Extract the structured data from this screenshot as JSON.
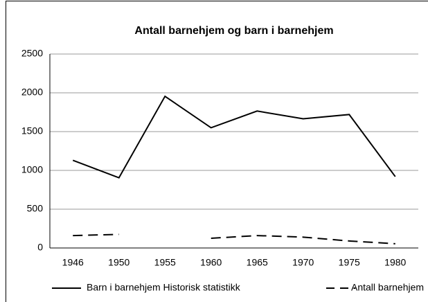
{
  "chart_data": {
    "type": "line",
    "title": "Antall barnehjem og barn i barnehjem",
    "categories": [
      "1946",
      "1950",
      "1955",
      "1960",
      "1965",
      "1970",
      "1975",
      "1980"
    ],
    "series": [
      {
        "name": "Barn i barnehjem Historisk statistikk",
        "color": "#000000",
        "style": "solid",
        "values": [
          1130,
          905,
          1955,
          1550,
          1765,
          1665,
          1720,
          920
        ]
      },
      {
        "name": "Antall barnehjem",
        "color": "#000000",
        "style": "dashed",
        "values": [
          160,
          175,
          null,
          125,
          160,
          140,
          90,
          55
        ]
      }
    ],
    "ylim": [
      0,
      2500
    ],
    "yticks": [
      0,
      500,
      1000,
      1500,
      2000,
      2500
    ],
    "grid": true
  }
}
